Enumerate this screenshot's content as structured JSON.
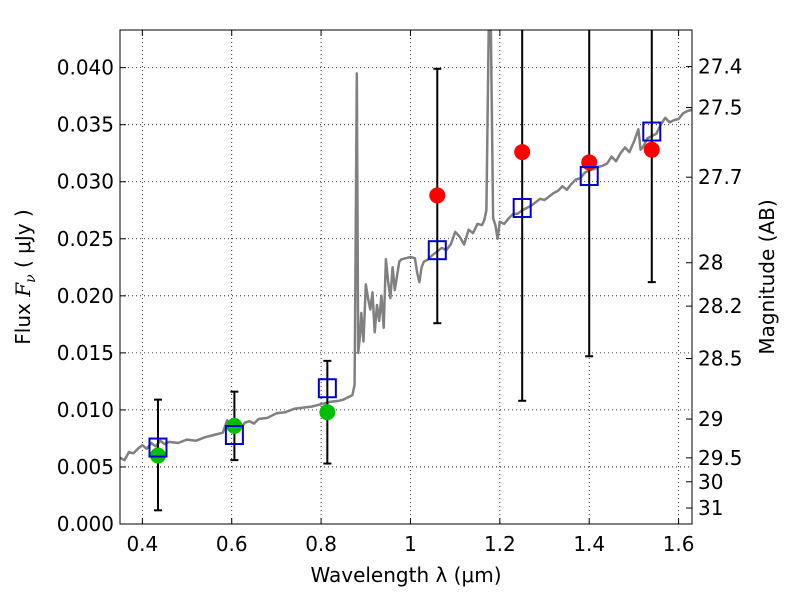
{
  "chart_data": {
    "type": "scatter",
    "xlabel": "Wavelength  λ (μm)",
    "ylabel": "Flux  Fν  ( μJy )",
    "ylabel_right": "Magnitude (AB)",
    "xlim": [
      0.35,
      1.63
    ],
    "ylim": [
      0.0,
      0.0433
    ],
    "grid": true,
    "x_ticks": [
      0.4,
      0.6,
      0.8,
      1.0,
      1.2,
      1.4,
      1.6
    ],
    "x_tick_labels": [
      "0.4",
      "0.6",
      "0.8",
      "1",
      "1.2",
      "1.4",
      "1.6"
    ],
    "y_ticks": [
      0.0,
      0.005,
      0.01,
      0.015,
      0.02,
      0.025,
      0.03,
      0.035,
      0.04
    ],
    "y_tick_labels": [
      "0.000",
      "0.005",
      "0.010",
      "0.015",
      "0.020",
      "0.025",
      "0.030",
      "0.035",
      "0.040"
    ],
    "right_ticks": [
      {
        "label": "27.4",
        "flux": 0.0401
      },
      {
        "label": "27.5",
        "flux": 0.0365
      },
      {
        "label": "27.7",
        "flux": 0.0304
      },
      {
        "label": "28",
        "flux": 0.0229
      },
      {
        "label": "28.2",
        "flux": 0.0191
      },
      {
        "label": "28.5",
        "flux": 0.0145
      },
      {
        "label": "29",
        "flux": 0.0092
      },
      {
        "label": "29.5",
        "flux": 0.0058
      },
      {
        "label": "30",
        "flux": 0.0037
      },
      {
        "label": "31",
        "flux": 0.0014
      }
    ],
    "series": [
      {
        "kind": "line",
        "color": "#808080",
        "points": [
          [
            0.35,
            0.0058
          ],
          [
            0.36,
            0.0056
          ],
          [
            0.37,
            0.0063
          ],
          [
            0.38,
            0.0062
          ],
          [
            0.39,
            0.0066
          ],
          [
            0.4,
            0.0069
          ],
          [
            0.41,
            0.0066
          ],
          [
            0.42,
            0.0071
          ],
          [
            0.43,
            0.0068
          ],
          [
            0.44,
            0.0073
          ],
          [
            0.45,
            0.007
          ],
          [
            0.46,
            0.0072
          ],
          [
            0.48,
            0.0071
          ],
          [
            0.5,
            0.0074
          ],
          [
            0.52,
            0.0073
          ],
          [
            0.54,
            0.0076
          ],
          [
            0.56,
            0.0078
          ],
          [
            0.58,
            0.008
          ],
          [
            0.59,
            0.0091
          ],
          [
            0.6,
            0.0082
          ],
          [
            0.61,
            0.0085
          ],
          [
            0.62,
            0.0084
          ],
          [
            0.63,
            0.0089
          ],
          [
            0.64,
            0.009
          ],
          [
            0.65,
            0.0088
          ],
          [
            0.66,
            0.0092
          ],
          [
            0.68,
            0.0093
          ],
          [
            0.7,
            0.0097
          ],
          [
            0.72,
            0.0098
          ],
          [
            0.74,
            0.0101
          ],
          [
            0.76,
            0.0102
          ],
          [
            0.78,
            0.0103
          ],
          [
            0.8,
            0.0105
          ],
          [
            0.82,
            0.0107
          ],
          [
            0.84,
            0.0108
          ],
          [
            0.85,
            0.0109
          ],
          [
            0.86,
            0.0111
          ],
          [
            0.87,
            0.0113
          ],
          [
            0.875,
            0.0122
          ],
          [
            0.878,
            0.0288
          ],
          [
            0.88,
            0.0395
          ],
          [
            0.883,
            0.015
          ],
          [
            0.887,
            0.0165
          ],
          [
            0.89,
            0.0185
          ],
          [
            0.895,
            0.016
          ],
          [
            0.9,
            0.021
          ],
          [
            0.905,
            0.0198
          ],
          [
            0.91,
            0.0188
          ],
          [
            0.915,
            0.0203
          ],
          [
            0.92,
            0.0168
          ],
          [
            0.925,
            0.0192
          ],
          [
            0.93,
            0.0178
          ],
          [
            0.935,
            0.02
          ],
          [
            0.94,
            0.0172
          ],
          [
            0.945,
            0.0232
          ],
          [
            0.95,
            0.0213
          ],
          [
            0.955,
            0.0198
          ],
          [
            0.96,
            0.0225
          ],
          [
            0.965,
            0.0205
          ],
          [
            0.97,
            0.0218
          ],
          [
            0.975,
            0.023
          ],
          [
            0.98,
            0.0232
          ],
          [
            0.99,
            0.0233
          ],
          [
            1.0,
            0.0234
          ],
          [
            1.01,
            0.0233
          ],
          [
            1.015,
            0.022
          ],
          [
            1.02,
            0.0212
          ],
          [
            1.025,
            0.0225
          ],
          [
            1.03,
            0.023
          ],
          [
            1.04,
            0.0232
          ],
          [
            1.05,
            0.0236
          ],
          [
            1.06,
            0.0239
          ],
          [
            1.07,
            0.0242
          ],
          [
            1.08,
            0.024
          ],
          [
            1.09,
            0.0245
          ],
          [
            1.1,
            0.0256
          ],
          [
            1.11,
            0.0252
          ],
          [
            1.12,
            0.0245
          ],
          [
            1.13,
            0.0258
          ],
          [
            1.14,
            0.0255
          ],
          [
            1.15,
            0.0263
          ],
          [
            1.16,
            0.0262
          ],
          [
            1.165,
            0.0266
          ],
          [
            1.17,
            0.0275
          ],
          [
            1.175,
            0.0433
          ],
          [
            1.18,
            0.0433
          ],
          [
            1.185,
            0.0268
          ],
          [
            1.19,
            0.0262
          ],
          [
            1.195,
            0.025
          ],
          [
            1.2,
            0.0265
          ],
          [
            1.21,
            0.0263
          ],
          [
            1.22,
            0.0268
          ],
          [
            1.23,
            0.0272
          ],
          [
            1.24,
            0.0272
          ],
          [
            1.25,
            0.0275
          ],
          [
            1.26,
            0.0277
          ],
          [
            1.27,
            0.0279
          ],
          [
            1.28,
            0.0282
          ],
          [
            1.29,
            0.0285
          ],
          [
            1.3,
            0.0284
          ],
          [
            1.31,
            0.0287
          ],
          [
            1.32,
            0.029
          ],
          [
            1.33,
            0.0292
          ],
          [
            1.34,
            0.0296
          ],
          [
            1.35,
            0.0293
          ],
          [
            1.36,
            0.0298
          ],
          [
            1.37,
            0.0302
          ],
          [
            1.38,
            0.0303
          ],
          [
            1.39,
            0.0308
          ],
          [
            1.4,
            0.031
          ],
          [
            1.41,
            0.0311
          ],
          [
            1.42,
            0.0313
          ],
          [
            1.43,
            0.0314
          ],
          [
            1.44,
            0.0316
          ],
          [
            1.45,
            0.0322
          ],
          [
            1.46,
            0.0318
          ],
          [
            1.47,
            0.0325
          ],
          [
            1.48,
            0.033
          ],
          [
            1.49,
            0.0326
          ],
          [
            1.5,
            0.0335
          ],
          [
            1.51,
            0.0346
          ],
          [
            1.515,
            0.0328
          ],
          [
            1.52,
            0.033
          ],
          [
            1.53,
            0.0338
          ],
          [
            1.54,
            0.034
          ],
          [
            1.55,
            0.0342
          ],
          [
            1.56,
            0.035
          ],
          [
            1.57,
            0.0356
          ],
          [
            1.58,
            0.0352
          ],
          [
            1.59,
            0.0354
          ],
          [
            1.6,
            0.0355
          ],
          [
            1.61,
            0.036
          ],
          [
            1.62,
            0.0362
          ],
          [
            1.63,
            0.0363
          ]
        ]
      },
      {
        "kind": "marker",
        "shape": "circle",
        "color": "#00bf00",
        "points": [
          {
            "x": 0.435,
            "y": 0.006
          },
          {
            "x": 0.606,
            "y": 0.0086
          },
          {
            "x": 0.814,
            "y": 0.0098
          }
        ]
      },
      {
        "kind": "marker",
        "shape": "circle",
        "color": "#ff0000",
        "points": [
          {
            "x": 1.06,
            "y": 0.0288
          },
          {
            "x": 1.25,
            "y": 0.0326
          },
          {
            "x": 1.4,
            "y": 0.0317
          },
          {
            "x": 1.54,
            "y": 0.0328
          }
        ]
      },
      {
        "kind": "marker",
        "shape": "open-square",
        "color": "#0000cc",
        "points": [
          {
            "x": 0.435,
            "y": 0.0067
          },
          {
            "x": 0.606,
            "y": 0.0078
          },
          {
            "x": 0.814,
            "y": 0.0119
          },
          {
            "x": 1.06,
            "y": 0.024
          },
          {
            "x": 1.25,
            "y": 0.0277
          },
          {
            "x": 1.4,
            "y": 0.0305
          },
          {
            "x": 1.54,
            "y": 0.0344
          }
        ]
      },
      {
        "kind": "errorbar",
        "color": "#000000",
        "bars": [
          {
            "x": 0.435,
            "low": 0.0012,
            "high": 0.0109
          },
          {
            "x": 0.606,
            "low": 0.0056,
            "high": 0.0116
          },
          {
            "x": 0.814,
            "low": 0.0053,
            "high": 0.0143
          },
          {
            "x": 1.06,
            "low": 0.0176,
            "high": 0.0399
          },
          {
            "x": 1.25,
            "low": 0.0108,
            "high": 0.0433
          },
          {
            "x": 1.4,
            "low": 0.0147,
            "high": 0.0433
          },
          {
            "x": 1.54,
            "low": 0.0212,
            "high": 0.0433
          }
        ]
      }
    ]
  }
}
